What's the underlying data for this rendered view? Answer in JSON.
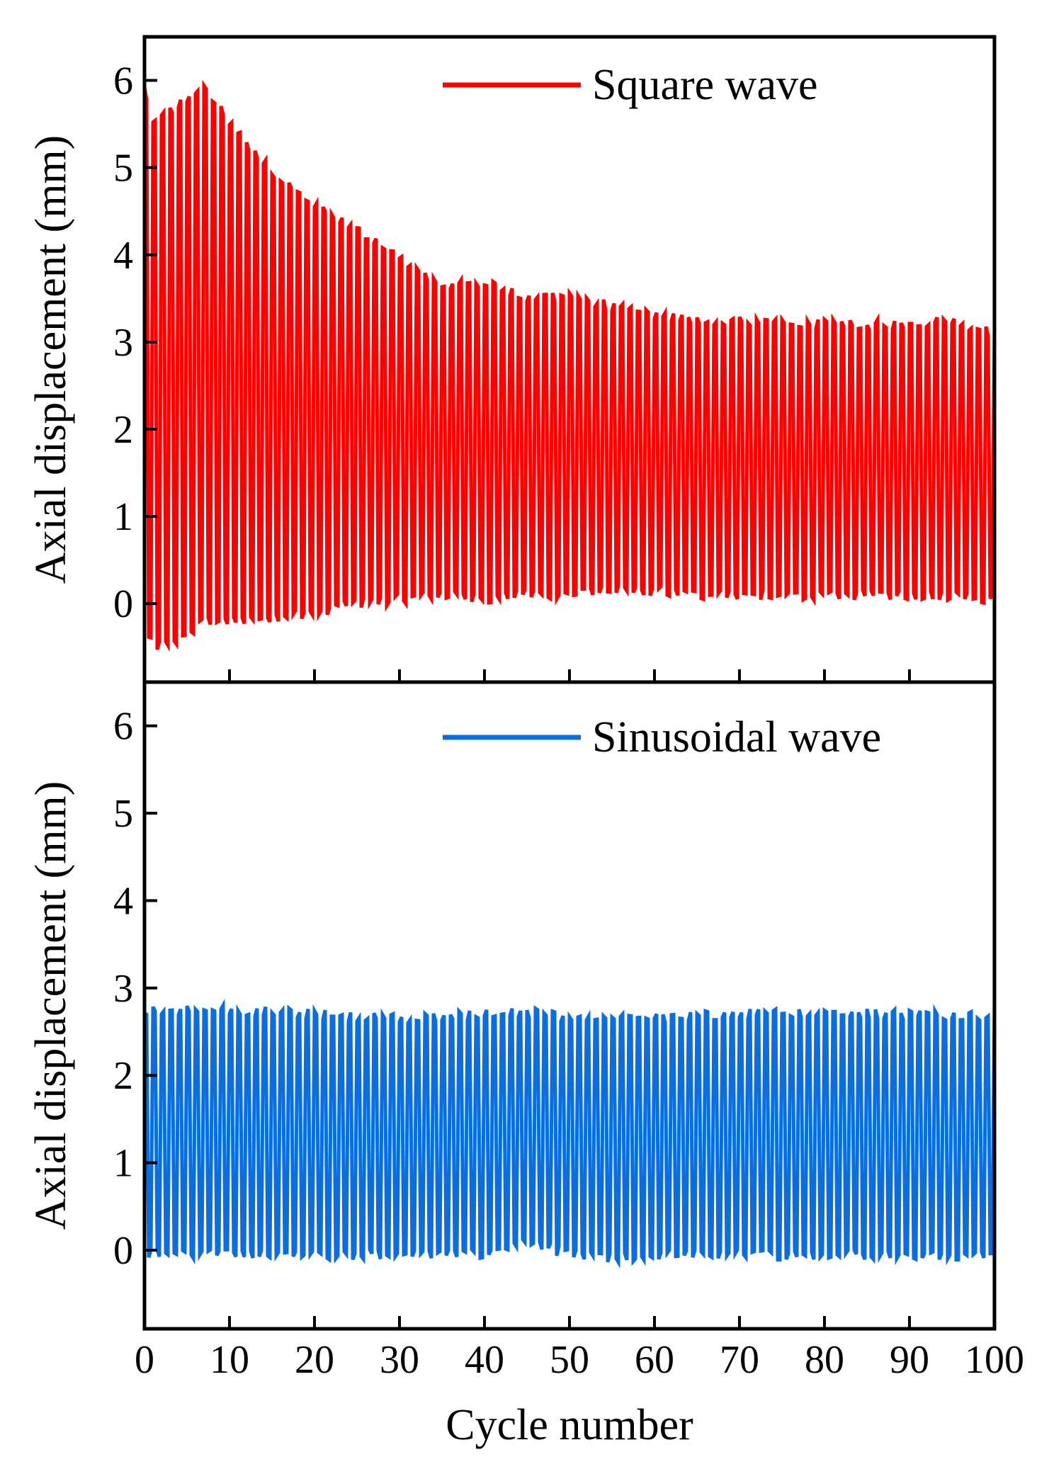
{
  "chart_data": [
    {
      "type": "line",
      "title": "",
      "xlabel": "",
      "ylabel": "Axial displacement (mm)",
      "xlim": [
        0,
        100
      ],
      "ylim": [
        -0.9,
        6.5
      ],
      "x_ticks": [
        0,
        10,
        20,
        30,
        40,
        50,
        60,
        70,
        80,
        90,
        100
      ],
      "x_tick_labels": [],
      "y_ticks": [
        0,
        1,
        2,
        3,
        4,
        5,
        6
      ],
      "y_tick_labels": [
        "0",
        "1",
        "2",
        "3",
        "4",
        "5",
        "6"
      ],
      "grid": false,
      "legend_position": "top-right",
      "series": [
        {
          "name": "Square wave",
          "color": "#ff0000",
          "cycles": 100,
          "envelope_cycle": [
            0,
            1,
            5,
            7,
            10,
            15,
            20,
            25,
            30,
            35,
            40,
            45,
            50,
            55,
            60,
            65,
            70,
            75,
            80,
            85,
            90,
            95,
            100
          ],
          "envelope_max": [
            5.9,
            5.5,
            5.8,
            5.95,
            5.5,
            4.95,
            4.55,
            4.3,
            3.95,
            3.65,
            3.7,
            3.5,
            3.55,
            3.4,
            3.3,
            3.25,
            3.25,
            3.2,
            3.2,
            3.2,
            3.2,
            3.25,
            3.1
          ],
          "envelope_min": [
            -0.3,
            -0.5,
            -0.4,
            -0.2,
            -0.2,
            -0.15,
            -0.1,
            0.0,
            0.05,
            0.1,
            0.05,
            0.1,
            0.1,
            0.15,
            0.15,
            0.1,
            0.1,
            0.1,
            0.1,
            0.1,
            0.1,
            0.1,
            0.05
          ]
        }
      ]
    },
    {
      "type": "line",
      "title": "",
      "xlabel": "Cycle number",
      "ylabel": "Axial displacement (mm)",
      "xlim": [
        0,
        100
      ],
      "ylim": [
        -0.9,
        6.5
      ],
      "x_ticks": [
        0,
        10,
        20,
        30,
        40,
        50,
        60,
        70,
        80,
        90,
        100
      ],
      "x_tick_labels": [
        "0",
        "10",
        "20",
        "30",
        "40",
        "50",
        "60",
        "70",
        "80",
        "90",
        "100"
      ],
      "y_ticks": [
        0,
        1,
        2,
        3,
        4,
        5,
        6
      ],
      "y_tick_labels": [
        "0",
        "1",
        "2",
        "3",
        "4",
        "5",
        "6"
      ],
      "grid": false,
      "legend_position": "top-right",
      "series": [
        {
          "name": "Sinusoidal wave",
          "color": "#0a6ee0",
          "cycles": 100,
          "envelope_cycle": [
            0,
            10,
            20,
            30,
            40,
            45,
            50,
            55,
            60,
            70,
            80,
            90,
            99,
            100
          ],
          "envelope_max": [
            2.75,
            2.75,
            2.7,
            2.65,
            2.7,
            2.72,
            2.65,
            2.65,
            2.65,
            2.7,
            2.72,
            2.7,
            2.68,
            2.85
          ],
          "envelope_min": [
            -0.05,
            -0.05,
            -0.05,
            -0.05,
            -0.05,
            0.1,
            -0.05,
            -0.1,
            -0.05,
            -0.05,
            -0.05,
            -0.05,
            -0.05,
            -0.1
          ]
        }
      ]
    }
  ]
}
